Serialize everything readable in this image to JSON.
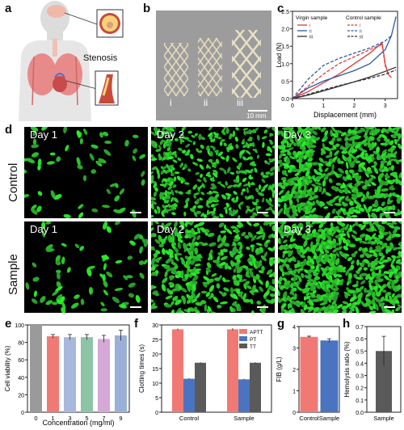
{
  "panel_labels": {
    "a": "a",
    "b": "b",
    "c": "c",
    "d": "d",
    "e": "e",
    "f": "f",
    "g": "g",
    "h": "h"
  },
  "panel_a": {
    "stenosis_label": "Stenosis"
  },
  "panel_b": {
    "stent_labels": [
      "i",
      "ii",
      "iii"
    ],
    "scale_label": "10 mm"
  },
  "panel_d": {
    "row_labels": [
      "Control",
      "Sample"
    ],
    "day_labels": [
      "Day 1",
      "Day 2",
      "Day 3"
    ]
  },
  "colors": {
    "red": "#f07a73",
    "blue": "#4a74c0",
    "gray": "#5a5a5a",
    "cell_green": "#33cc33"
  },
  "chart_data": [
    {
      "panel": "c",
      "type": "line",
      "xlabel": "Displacement (mm)",
      "ylabel": "Load (N)",
      "xlim": [
        0,
        3.4
      ],
      "ylim": [
        0,
        2.5
      ],
      "xticks": [
        0,
        1,
        2,
        3
      ],
      "yticks": [
        0.0,
        0.5,
        1.0,
        1.5,
        2.0,
        2.5
      ],
      "legend_groups": [
        "Virgin sample",
        "Control sample"
      ],
      "series": [
        {
          "name": "i",
          "group": "Virgin sample",
          "style": "solid",
          "color": "#e03a3a",
          "x": [
            0,
            0.5,
            1,
            1.5,
            2,
            2.5,
            2.9,
            3.0,
            3.1,
            3.2
          ],
          "y": [
            0,
            0.2,
            0.45,
            0.7,
            1.0,
            1.3,
            1.6,
            1.0,
            0.7,
            0.6
          ]
        },
        {
          "name": "ii",
          "group": "Virgin sample",
          "style": "solid",
          "color": "#2a5aa8",
          "x": [
            0,
            0.5,
            1,
            1.5,
            2,
            2.5,
            3,
            3.2,
            3.35
          ],
          "y": [
            0,
            0.3,
            0.5,
            0.65,
            0.8,
            1.0,
            1.4,
            1.8,
            2.35
          ]
        },
        {
          "name": "iii",
          "group": "Virgin sample",
          "style": "solid",
          "color": "#333333",
          "x": [
            0,
            0.5,
            1,
            1.5,
            2,
            2.5,
            3,
            3.35
          ],
          "y": [
            0,
            0.1,
            0.22,
            0.35,
            0.48,
            0.62,
            0.78,
            0.9
          ]
        },
        {
          "name": "i",
          "group": "Control sample",
          "style": "dashed",
          "color": "#e03a3a",
          "x": [
            0,
            0.5,
            1,
            1.5,
            2,
            2.5,
            2.9,
            3.0,
            3.1
          ],
          "y": [
            0,
            0.35,
            0.7,
            1.0,
            1.2,
            1.4,
            1.55,
            0.95,
            0.7
          ]
        },
        {
          "name": "ii",
          "group": "Control sample",
          "style": "dashed",
          "color": "#2a5aa8",
          "x": [
            0,
            0.5,
            1,
            1.5,
            2,
            2.5,
            3,
            3.2
          ],
          "y": [
            0,
            0.55,
            0.95,
            1.15,
            1.3,
            1.45,
            1.65,
            1.8
          ]
        },
        {
          "name": "iii",
          "group": "Control sample",
          "style": "dashed",
          "color": "#333333",
          "x": [
            0,
            0.5,
            1,
            1.5,
            2,
            2.5,
            3,
            3.35
          ],
          "y": [
            0,
            0.12,
            0.25,
            0.37,
            0.48,
            0.58,
            0.7,
            0.82
          ]
        }
      ]
    },
    {
      "panel": "e",
      "type": "bar",
      "xlabel": "Concentration (mg/ml)",
      "ylabel": "Cell viability (%)",
      "categories": [
        "0",
        "1",
        "3",
        "5",
        "7",
        "9"
      ],
      "values": [
        100,
        87,
        86,
        86,
        84,
        88
      ],
      "errors": [
        0,
        2,
        3,
        3,
        4,
        6
      ],
      "colors": [
        "#9a9a9a",
        "#f07a73",
        "#a8b8dc",
        "#8dc4a6",
        "#d6a8d6",
        "#9ab0d8"
      ],
      "ylim": [
        0,
        100
      ],
      "yticks": [
        0,
        20,
        40,
        60,
        80,
        100
      ]
    },
    {
      "panel": "f",
      "type": "bar",
      "xlabel": "",
      "ylabel": "Clotting times (s)",
      "categories": [
        "Control",
        "Sample"
      ],
      "series": [
        {
          "name": "APTT",
          "color": "#f07a73",
          "values": [
            28.5,
            28.5
          ],
          "errors": [
            0.3,
            0.4
          ]
        },
        {
          "name": "PT",
          "color": "#4a74c0",
          "values": [
            11.5,
            11.3
          ],
          "errors": [
            0.2,
            0.2
          ]
        },
        {
          "name": "TT",
          "color": "#5a5a5a",
          "values": [
            17,
            17
          ],
          "errors": [
            0.2,
            0.2
          ]
        }
      ],
      "ylim": [
        0,
        30
      ],
      "yticks": [
        0,
        5,
        10,
        15,
        20,
        25,
        30
      ]
    },
    {
      "panel": "g",
      "type": "bar",
      "xlabel": "",
      "ylabel": "FIB (g/L)",
      "categories": [
        "Control",
        "Sample"
      ],
      "values": [
        3.52,
        3.35
      ],
      "errors": [
        0.03,
        0.08
      ],
      "colors": [
        "#f07a73",
        "#4a74c0"
      ],
      "ylim": [
        0,
        4
      ],
      "yticks": [
        0,
        1,
        2,
        3,
        4
      ]
    },
    {
      "panel": "h",
      "type": "bar",
      "xlabel": "",
      "ylabel": "Hemolysis ratio (%)",
      "categories": [
        "Sample"
      ],
      "values": [
        0.5
      ],
      "errors": [
        0.12
      ],
      "colors": [
        "#5a5a5a"
      ],
      "ylim": [
        0,
        0.7
      ],
      "yticks": [
        0.0,
        0.1,
        0.2,
        0.3,
        0.4,
        0.5,
        0.6,
        0.7
      ]
    }
  ]
}
